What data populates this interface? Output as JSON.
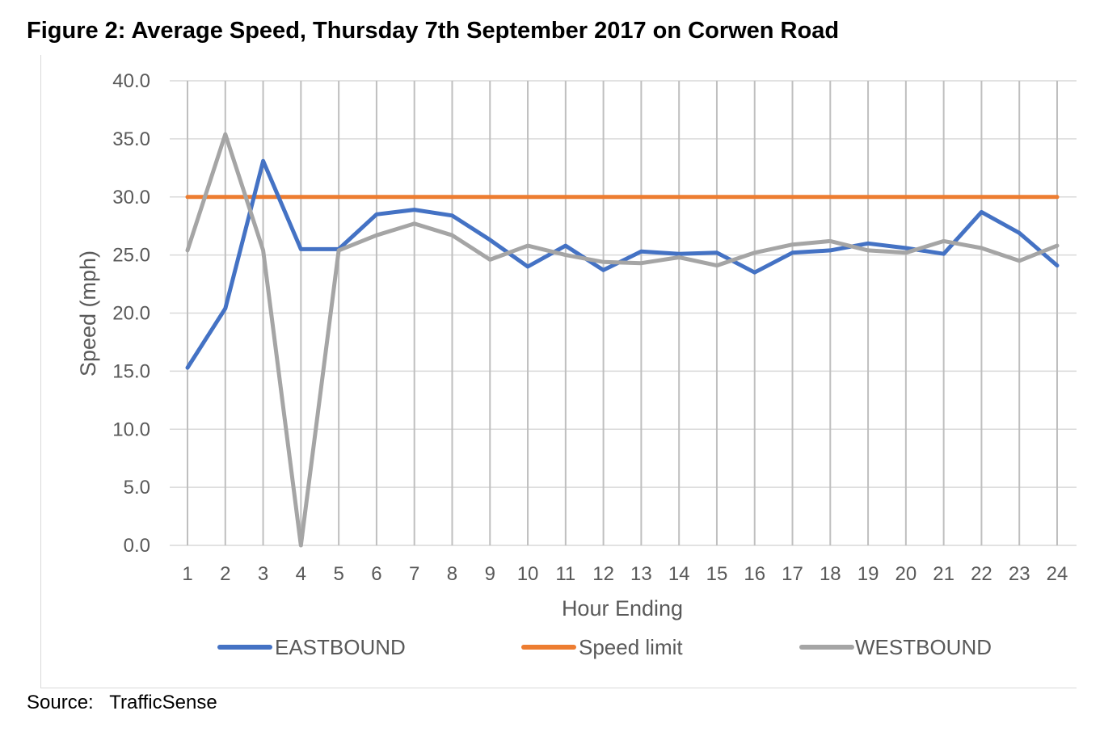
{
  "title": "Figure 2: Average Speed, Thursday 7th September 2017 on Corwen Road",
  "source": "Source:   TrafficSense",
  "chart_data": {
    "type": "line",
    "title": "Figure 2: Average Speed, Thursday 7th September 2017 on Corwen Road",
    "xlabel": "Hour Ending",
    "ylabel": "Speed (mph)",
    "ylim": [
      0,
      40
    ],
    "yticks": [
      "0.0",
      "5.0",
      "10.0",
      "15.0",
      "20.0",
      "25.0",
      "30.0",
      "35.0",
      "40.0"
    ],
    "categories": [
      "1",
      "2",
      "3",
      "4",
      "5",
      "6",
      "7",
      "8",
      "9",
      "10",
      "11",
      "12",
      "13",
      "14",
      "15",
      "16",
      "17",
      "18",
      "19",
      "20",
      "21",
      "22",
      "23",
      "24"
    ],
    "grid": "horizontal and vertical",
    "legend_position": "bottom",
    "series": [
      {
        "name": "EASTBOUND",
        "color": "#4472c4",
        "values": [
          15.3,
          20.4,
          33.1,
          25.5,
          25.5,
          28.5,
          28.9,
          28.4,
          26.3,
          24.0,
          25.8,
          23.7,
          25.3,
          25.1,
          25.2,
          23.5,
          25.2,
          25.4,
          26.0,
          25.6,
          25.1,
          28.7,
          26.9,
          24.1
        ]
      },
      {
        "name": "Speed limit",
        "color": "#ed7d31",
        "values": [
          30,
          30,
          30,
          30,
          30,
          30,
          30,
          30,
          30,
          30,
          30,
          30,
          30,
          30,
          30,
          30,
          30,
          30,
          30,
          30,
          30,
          30,
          30,
          30
        ]
      },
      {
        "name": "WESTBOUND",
        "color": "#a5a5a5",
        "values": [
          25.4,
          35.4,
          25.4,
          0.0,
          25.4,
          26.7,
          27.7,
          26.7,
          24.6,
          25.8,
          25.0,
          24.4,
          24.3,
          24.8,
          24.1,
          25.2,
          25.9,
          26.2,
          25.4,
          25.2,
          26.2,
          25.6,
          24.5,
          25.8
        ]
      }
    ]
  }
}
